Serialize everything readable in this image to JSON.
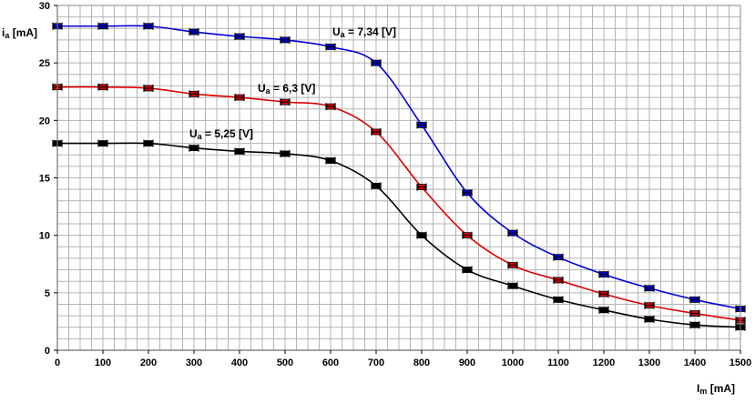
{
  "chart_data": {
    "type": "line",
    "title": "",
    "xlabel": "I",
    "xlabel_sub": "m",
    "xlabel_unit": " [mA]",
    "ylabel": "i",
    "ylabel_sub": "a",
    "ylabel_unit": " [mA]",
    "xlim": [
      0,
      1500
    ],
    "ylim": [
      0,
      30
    ],
    "xticks": [
      "0",
      "100",
      "200",
      "300",
      "400",
      "500",
      "600",
      "700",
      "800",
      "900",
      "1000",
      "1100",
      "1200",
      "1300",
      "1400",
      "1500"
    ],
    "yticks": [
      "0",
      "5",
      "10",
      "15",
      "20",
      "25",
      "30"
    ],
    "grid": true,
    "x": [
      0,
      100,
      200,
      300,
      400,
      500,
      600,
      700,
      800,
      900,
      1000,
      1100,
      1200,
      1300,
      1400,
      1500
    ],
    "series": [
      {
        "name": "Ua = 7,34 [V]",
        "label_main": "U",
        "label_sub": "a",
        "label_rest": " = 7,34 [V]",
        "color": "#0000dd",
        "values": [
          28.2,
          28.2,
          28.2,
          27.7,
          27.3,
          27.0,
          26.4,
          25.0,
          19.6,
          13.7,
          10.2,
          8.1,
          6.6,
          5.4,
          4.4,
          3.6
        ]
      },
      {
        "name": "Ua = 6,3 [V]",
        "label_main": "U",
        "label_sub": "a",
        "label_rest": " = 6,3 [V]",
        "color": "#dd0000",
        "values": [
          22.9,
          22.9,
          22.8,
          22.3,
          22.0,
          21.6,
          21.2,
          19.0,
          14.2,
          10.0,
          7.4,
          6.1,
          4.9,
          3.9,
          3.2,
          2.6
        ]
      },
      {
        "name": "Ua = 5,25 [V]",
        "label_main": "U",
        "label_sub": "a",
        "label_rest": " = 5,25 [V]",
        "color": "#000000",
        "values": [
          18.0,
          18.0,
          18.0,
          17.6,
          17.3,
          17.1,
          16.5,
          14.3,
          10.0,
          7.0,
          5.6,
          4.4,
          3.5,
          2.7,
          2.2,
          2.0
        ]
      }
    ]
  }
}
